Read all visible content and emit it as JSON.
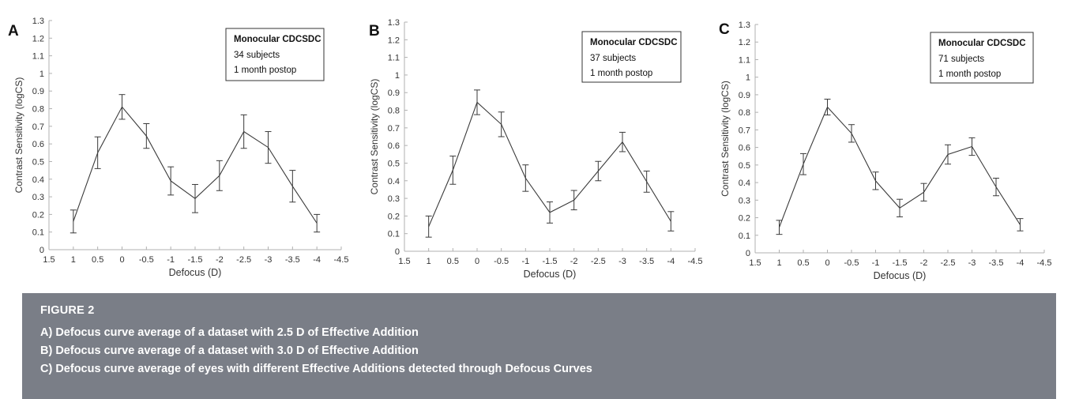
{
  "chart_data": [
    {
      "type": "line",
      "panel": "A",
      "x": [
        1,
        0.5,
        0,
        -0.5,
        -1,
        -1.5,
        -2,
        -2.5,
        -3,
        -3.5,
        -4
      ],
      "series": [
        {
          "values": [
            0.16,
            0.55,
            0.81,
            0.645,
            0.39,
            0.29,
            0.42,
            0.67,
            0.58,
            0.36,
            0.15
          ],
          "err": [
            0.065,
            0.09,
            0.07,
            0.07,
            0.08,
            0.08,
            0.085,
            0.095,
            0.09,
            0.09,
            0.05
          ]
        }
      ],
      "xlabel": "Defocus (D)",
      "ylabel": "Contrast Sensitivity (logCS)",
      "xlim": [
        1.5,
        -4.5
      ],
      "ylim": [
        0,
        1.3
      ],
      "xticks": [
        "1.5",
        "1",
        "0.5",
        "0",
        "-0.5",
        "-1",
        "-1.5",
        "-2",
        "-2.5",
        "-3",
        "-3.5",
        "-4",
        "-4.5"
      ],
      "yticks": [
        "0",
        "0.1",
        "0.2",
        "0.3",
        "0.4",
        "0.5",
        "0.6",
        "0.7",
        "0.8",
        "0.9",
        "1",
        "1.1",
        "1.2",
        "1.3"
      ],
      "annotation": {
        "title": "Monocular CDCSDC",
        "subjects": "34 subjects",
        "time": "1 month postop"
      }
    },
    {
      "type": "line",
      "panel": "B",
      "x": [
        1,
        0.5,
        0,
        -0.5,
        -1,
        -1.5,
        -2,
        -2.5,
        -3,
        -3.5,
        -4
      ],
      "series": [
        {
          "values": [
            0.14,
            0.46,
            0.845,
            0.72,
            0.415,
            0.22,
            0.29,
            0.455,
            0.62,
            0.395,
            0.17
          ],
          "err": [
            0.06,
            0.08,
            0.07,
            0.07,
            0.075,
            0.06,
            0.055,
            0.055,
            0.055,
            0.06,
            0.055
          ]
        }
      ],
      "xlabel": "Defocus (D)",
      "ylabel": "Contrast Sensitivity (logCS)",
      "xlim": [
        1.5,
        -4.5
      ],
      "ylim": [
        0,
        1.3
      ],
      "xticks": [
        "1.5",
        "1",
        "0.5",
        "0",
        "-0.5",
        "-1",
        "-1.5",
        "-2",
        "-2.5",
        "-3",
        "-3.5",
        "-4",
        "-4.5"
      ],
      "yticks": [
        "0",
        "0.1",
        "0.2",
        "0.3",
        "0.4",
        "0.5",
        "0.6",
        "0.7",
        "0.8",
        "0.9",
        "1",
        "1.1",
        "1.2",
        "1.3"
      ],
      "annotation": {
        "title": "Monocular CDCSDC",
        "subjects": "37 subjects",
        "time": "1 month postop"
      }
    },
    {
      "type": "line",
      "panel": "C",
      "x": [
        1,
        0.5,
        0,
        -0.5,
        -1,
        -1.5,
        -2,
        -2.5,
        -3,
        -3.5,
        -4
      ],
      "series": [
        {
          "values": [
            0.145,
            0.505,
            0.83,
            0.68,
            0.41,
            0.255,
            0.345,
            0.56,
            0.605,
            0.375,
            0.16
          ],
          "err": [
            0.04,
            0.06,
            0.045,
            0.05,
            0.05,
            0.05,
            0.05,
            0.055,
            0.05,
            0.05,
            0.035
          ]
        }
      ],
      "xlabel": "Defocus (D)",
      "ylabel": "Contrast Sensitivity (logCS)",
      "xlim": [
        1.5,
        -4.5
      ],
      "ylim": [
        0,
        1.3
      ],
      "xticks": [
        "1.5",
        "1",
        "0.5",
        "0",
        "-0.5",
        "-1",
        "-1.5",
        "-2",
        "-2.5",
        "-3",
        "-3.5",
        "-4",
        "-4.5"
      ],
      "yticks": [
        "0",
        "0.1",
        "0.2",
        "0.3",
        "0.4",
        "0.5",
        "0.6",
        "0.7",
        "0.8",
        "0.9",
        "1",
        "1.1",
        "1.2",
        "1.3"
      ],
      "annotation": {
        "title": "Monocular CDCSDC",
        "subjects": "71 subjects",
        "time": "1 month postop"
      }
    }
  ],
  "caption": {
    "title": "FIGURE 2",
    "lines": [
      "A) Defocus curve average of a dataset with 2.5 D of Effective Addition",
      "B) Defocus curve average of a dataset with 3.0 D of Effective Addition",
      "C) Defocus curve average of eyes with different Effective Additions detected through Defocus Curves"
    ]
  },
  "colors": {
    "caption_bg": "#7a7e87",
    "line": "#3a3a3a",
    "axis": "#b0b0b0"
  }
}
